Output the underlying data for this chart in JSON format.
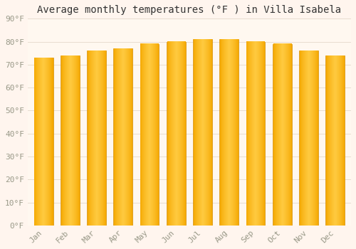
{
  "title": "Average monthly temperatures (°F ) in Villa Isabela",
  "months": [
    "Jan",
    "Feb",
    "Mar",
    "Apr",
    "May",
    "Jun",
    "Jul",
    "Aug",
    "Sep",
    "Oct",
    "Nov",
    "Dec"
  ],
  "values": [
    73,
    74,
    76,
    77,
    79,
    80,
    81,
    81,
    80,
    79,
    76,
    74
  ],
  "bar_color_center": "#FFCA40",
  "bar_color_edge": "#F5A800",
  "background_color": "#FFF5EE",
  "plot_bg_color": "#FFF8F0",
  "grid_color": "#E8DDD0",
  "ylim": [
    0,
    90
  ],
  "yticks": [
    0,
    10,
    20,
    30,
    40,
    50,
    60,
    70,
    80,
    90
  ],
  "title_fontsize": 10,
  "tick_fontsize": 8,
  "font_family": "monospace"
}
